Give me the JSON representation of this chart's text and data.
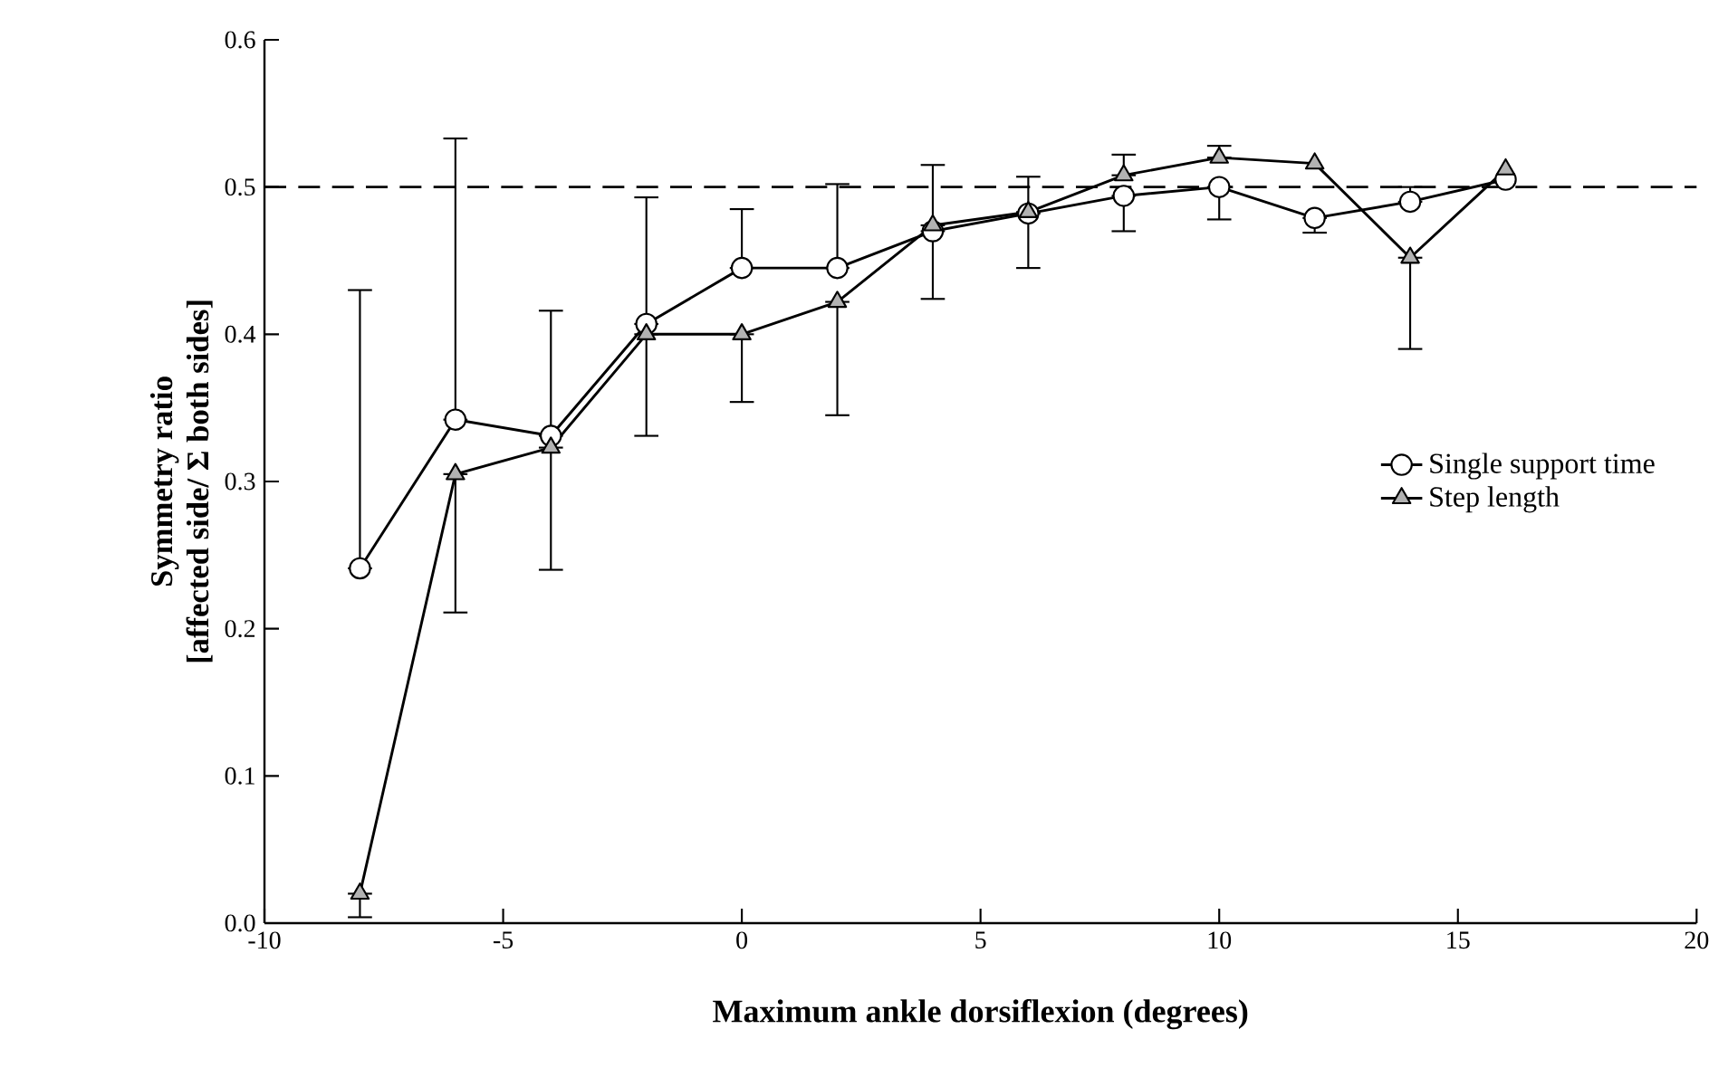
{
  "chart_data": {
    "type": "line",
    "xlabel": "Maximum ankle dorsiflexion (degrees)",
    "ylabel": "Symmetry ratio\n[affected side/ Σ both sides]",
    "xlim": [
      -10,
      20
    ],
    "xticks": [
      -10,
      -5,
      0,
      5,
      10,
      15,
      20
    ],
    "ylim": [
      0,
      0.6
    ],
    "yticks": [
      {
        "value": 0,
        "label": "0.0"
      },
      0.1,
      0.2,
      0.3,
      0.4,
      0.5,
      0.6
    ],
    "grid": false,
    "legend": "right",
    "line_style": "solid",
    "ref_lines": [
      {
        "axis": "y",
        "value": 0.5,
        "line_style": "dashed",
        "color": "#000000"
      }
    ],
    "series": [
      {
        "name": "Single support time",
        "color": "#000000",
        "marker": "circle",
        "x": [
          -8,
          -6,
          -4,
          -2,
          0,
          2,
          4,
          6,
          8,
          10,
          12,
          14,
          16
        ],
        "values": [
          0.241,
          0.342,
          0.331,
          0.407,
          0.445,
          0.445,
          0.47,
          0.482,
          0.494,
          0.5,
          0.479,
          0.49,
          0.505
        ],
        "errors": [
          [
            0.241,
            0.43
          ],
          [
            0.342,
            0.533
          ],
          [
            0.331,
            0.416
          ],
          [
            0.407,
            0.493
          ],
          [
            0.445,
            0.485
          ],
          [
            0.445,
            0.502
          ],
          [
            0.47,
            0.515
          ],
          [
            0.482,
            0.507
          ],
          [
            0.47,
            0.494
          ],
          [
            0.478,
            0.5
          ],
          [
            0.469,
            0.479
          ],
          [
            0.49,
            0.5
          ],
          null
        ]
      },
      {
        "name": "Step length",
        "color": "#000000",
        "marker": "triangle",
        "x": [
          -8,
          -6,
          -4,
          -2,
          0,
          2,
          4,
          6,
          8,
          10,
          12,
          14,
          16
        ],
        "values": [
          0.02,
          0.305,
          0.323,
          0.4,
          0.4,
          0.422,
          0.474,
          0.483,
          0.508,
          0.52,
          0.516,
          0.452,
          0.512
        ],
        "errors": [
          [
            0.004,
            0.02
          ],
          [
            0.211,
            0.305
          ],
          [
            0.24,
            0.323
          ],
          [
            0.331,
            0.4
          ],
          [
            0.354,
            0.4
          ],
          [
            0.345,
            0.422
          ],
          [
            0.424,
            0.474
          ],
          [
            0.445,
            0.483
          ],
          [
            0.508,
            0.522
          ],
          [
            0.52,
            0.528
          ],
          null,
          [
            0.39,
            0.452
          ],
          null
        ]
      }
    ]
  }
}
